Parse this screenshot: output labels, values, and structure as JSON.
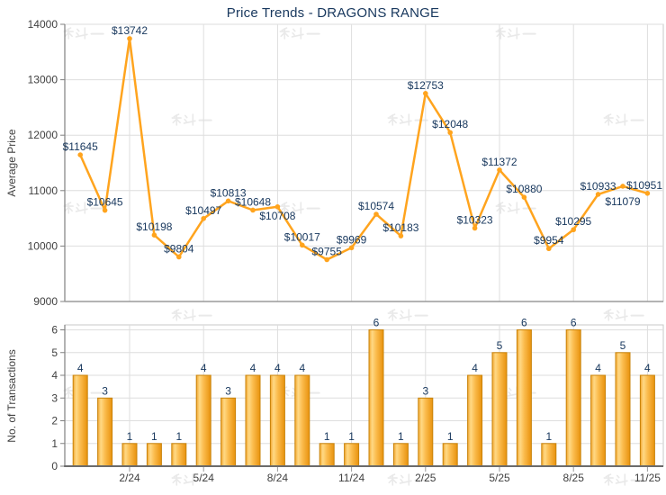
{
  "title": "Price Trends - DRAGONS RANGE",
  "watermark_text": "科一",
  "colors": {
    "accent_orange": "#FFA41E",
    "bar_fill_light": "#FFD985",
    "bar_fill_dark": "#E8920D",
    "bar_border": "#C8830A",
    "label_navy": "#17375D",
    "axis_text": "#404040",
    "gridline": "#DEDEDE",
    "axis_line": "#808080",
    "watermark": "#E9E9E9"
  },
  "chart_data": [
    {
      "type": "line",
      "title": "Price Trends - DRAGONS RANGE",
      "ylabel": "Average Price",
      "ylim": [
        9000,
        14000
      ],
      "yticks": [
        9000,
        10000,
        11000,
        12000,
        13000,
        14000
      ],
      "grid": true,
      "legend": "none",
      "x": [
        "12/23",
        "1/24",
        "2/24",
        "3/24",
        "4/24",
        "5/24",
        "6/24",
        "7/24",
        "8/24",
        "9/24",
        "10/24",
        "11/24",
        "12/24",
        "1/25",
        "2/25",
        "3/25",
        "4/25",
        "5/25",
        "6/25",
        "7/25",
        "8/25",
        "9/25",
        "10/25",
        "11/25"
      ],
      "xtick_indices": [
        2,
        5,
        8,
        11,
        14,
        17,
        20,
        23
      ],
      "xtick_labels": [
        "2/24",
        "5/24",
        "8/24",
        "11/24",
        "2/25",
        "5/25",
        "8/25",
        "11/25"
      ],
      "values": [
        11645,
        10645,
        13742,
        10198,
        9804,
        10497,
        10813,
        10648,
        10708,
        10017,
        9755,
        9969,
        10574,
        10183,
        12753,
        12048,
        10323,
        11372,
        10880,
        9954,
        10295,
        10933,
        11079,
        10951
      ],
      "point_labels": [
        "$11645",
        "$10645",
        "$13742",
        "$10198",
        "$9804",
        "$10497",
        "$10813",
        "$10648",
        "$10708",
        "$10017",
        "$9755",
        "$9969",
        "$10574",
        "$10183",
        "$12753",
        "$12048",
        "$10323",
        "$11372",
        "$10880",
        "$9954",
        "$10295",
        "$10933",
        "$11079",
        "$10951"
      ],
      "label_side": [
        "above",
        "above",
        "above",
        "above",
        "above",
        "above",
        "above",
        "above",
        "below",
        "above",
        "above",
        "above",
        "above",
        "above",
        "above",
        "above",
        "above",
        "above",
        "above",
        "above",
        "above",
        "above",
        "below2",
        "above"
      ]
    },
    {
      "type": "bar",
      "ylabel": "No. of Transactions",
      "ylim": [
        0,
        6
      ],
      "yticks": [
        0,
        1,
        2,
        3,
        4,
        5,
        6
      ],
      "grid": true,
      "legend": "none",
      "x": [
        "12/23",
        "1/24",
        "2/24",
        "3/24",
        "4/24",
        "5/24",
        "6/24",
        "7/24",
        "8/24",
        "9/24",
        "10/24",
        "11/24",
        "12/24",
        "1/25",
        "2/25",
        "3/25",
        "4/25",
        "5/25",
        "6/25",
        "7/25",
        "8/25",
        "9/25",
        "10/25",
        "11/25"
      ],
      "xtick_indices": [
        2,
        5,
        8,
        11,
        14,
        17,
        20,
        23
      ],
      "xtick_labels": [
        "2/24",
        "5/24",
        "8/24",
        "11/24",
        "2/25",
        "5/25",
        "8/25",
        "11/25"
      ],
      "values": [
        4,
        3,
        1,
        1,
        1,
        4,
        3,
        4,
        4,
        4,
        1,
        1,
        6,
        1,
        3,
        1,
        4,
        5,
        6,
        1,
        6,
        4,
        5,
        4
      ]
    }
  ]
}
